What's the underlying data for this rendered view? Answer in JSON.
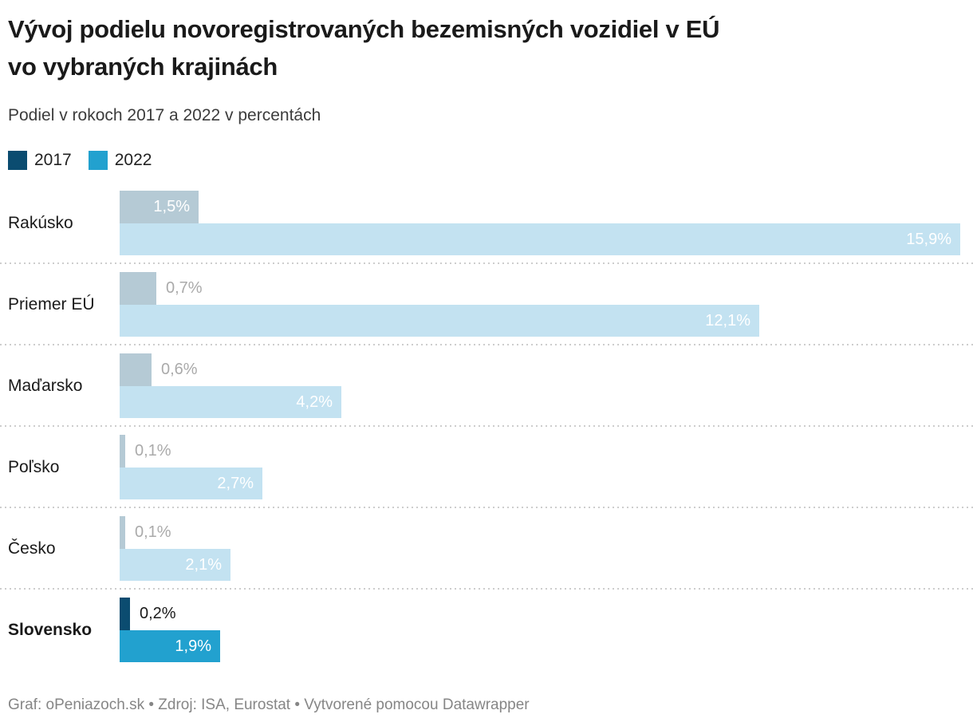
{
  "header": {
    "title": "Vývoj podielu novoregistrovaných bezemisných vozidiel v EÚ\nvo vybraných krajinách",
    "subtitle": "Podiel v rokoch 2017 a 2022 v percentách"
  },
  "legend": {
    "items": [
      {
        "label": "2017",
        "color": "#0b4c70"
      },
      {
        "label": "2022",
        "color": "#22a1cf"
      }
    ]
  },
  "chart_data": {
    "type": "bar",
    "orientation": "horizontal",
    "unit": "percent",
    "title": "Vývoj podielu novoregistrovaných bezemisných vozidiel v EÚ vo vybraných krajinách",
    "subtitle": "Podiel v rokoch 2017 a 2022 v percentách",
    "categories": [
      "Rakúsko",
      "Priemer EÚ",
      "Maďarsko",
      "Poľsko",
      "Česko",
      "Slovensko"
    ],
    "series": [
      {
        "name": "2017",
        "values": [
          1.5,
          0.7,
          0.6,
          0.1,
          0.1,
          0.2
        ],
        "labels": [
          "1,5%",
          "0,7%",
          "0,6%",
          "0,1%",
          "0,1%",
          "0,2%"
        ]
      },
      {
        "name": "2022",
        "values": [
          15.9,
          12.1,
          4.2,
          2.7,
          2.1,
          1.9
        ],
        "labels": [
          "15,9%",
          "12,1%",
          "4,2%",
          "2,7%",
          "2,1%",
          "1,9%"
        ]
      }
    ],
    "highlighted_category": "Slovensko",
    "xlim": [
      0,
      15.9
    ],
    "grid": false,
    "legend_position": "top-left",
    "row_separators": "dotted"
  },
  "colors": {
    "muted_2017": "#b5cad5",
    "muted_2022": "#c3e2f1",
    "highlight_2017": "#0b4c70",
    "highlight_2022": "#22a1cf",
    "value_label_inside": "#ffffff",
    "value_label_outside_muted": "#aaaaaa",
    "value_label_outside_highlight": "#1a1a1a",
    "separator": "#cdcdcd"
  },
  "footer": {
    "credit": "Graf: oPeniazoch.sk • Zdroj: ISA, Eurostat • Vytvorené pomocou Datawrapper"
  }
}
